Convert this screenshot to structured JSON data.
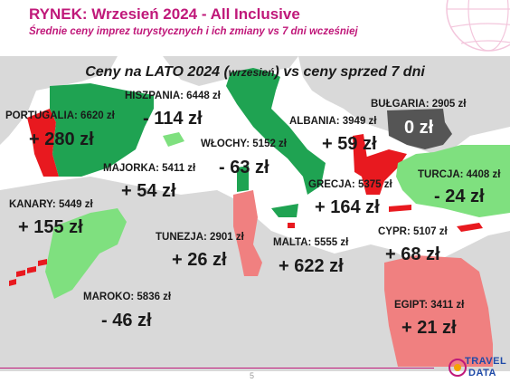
{
  "header": {
    "title": "RYNEK: Wrzesień 2024 - All Inclusive",
    "subtitle": "Średnie ceny imprez turystycznych i ich zmiany vs 7 dni wcześniej"
  },
  "heading": {
    "part1": "Ceny na LATO 2024 (",
    "part2": "wrzesień",
    "part3": ") vs ceny sprzed 7 dni"
  },
  "colors": {
    "brand": "#c0197a",
    "water": "#ffffff",
    "land": "#d9d9d9",
    "increase_strong": "#e8191f",
    "increase_mild": "#f08080",
    "decrease_strong": "#1fa352",
    "decrease_mild": "#7fe07f",
    "no_change": "#555555"
  },
  "destinations": [
    {
      "id": "portugalia",
      "name": "PORTUGALIA: 6620 zł",
      "change": "+ 280 zł"
    },
    {
      "id": "hiszpania",
      "name": "HISZPANIA: 6448 zł",
      "change": "- 114 zł"
    },
    {
      "id": "wlochy",
      "name": "WŁOCHY: 5152 zł",
      "change": "- 63 zł"
    },
    {
      "id": "albania",
      "name": "ALBANIA: 3949 zł",
      "change": "+ 59 zł"
    },
    {
      "id": "bulgaria",
      "name": "BUŁGARIA: 2905 zł",
      "change": "0 zł"
    },
    {
      "id": "turcja",
      "name": "TURCJA: 4408 zł",
      "change": "- 24 zł"
    },
    {
      "id": "majorka",
      "name": "MAJORKA: 5411 zł",
      "change": "+ 54 zł"
    },
    {
      "id": "grecja",
      "name": "GRECJA: 5375 zł",
      "change": "+ 164 zł"
    },
    {
      "id": "kanary",
      "name": "KANARY: 5449 zł",
      "change": "+ 155 zł"
    },
    {
      "id": "tunezja",
      "name": "TUNEZJA: 2901 zł",
      "change": "+ 26 zł"
    },
    {
      "id": "malta",
      "name": "MALTA: 5555 zł",
      "change": "+ 622 zł"
    },
    {
      "id": "cypr",
      "name": "CYPR: 5107 zł",
      "change": "+ 68 zł"
    },
    {
      "id": "maroko",
      "name": "MAROKO: 5836 zł",
      "change": "- 46 zł"
    },
    {
      "id": "egipt",
      "name": "EGIPT: 3411 zł",
      "change": "+ 21 zł"
    }
  ],
  "footer": {
    "page_number": "5",
    "logo_line1": "TRAVEL",
    "logo_line2": "DATA"
  }
}
